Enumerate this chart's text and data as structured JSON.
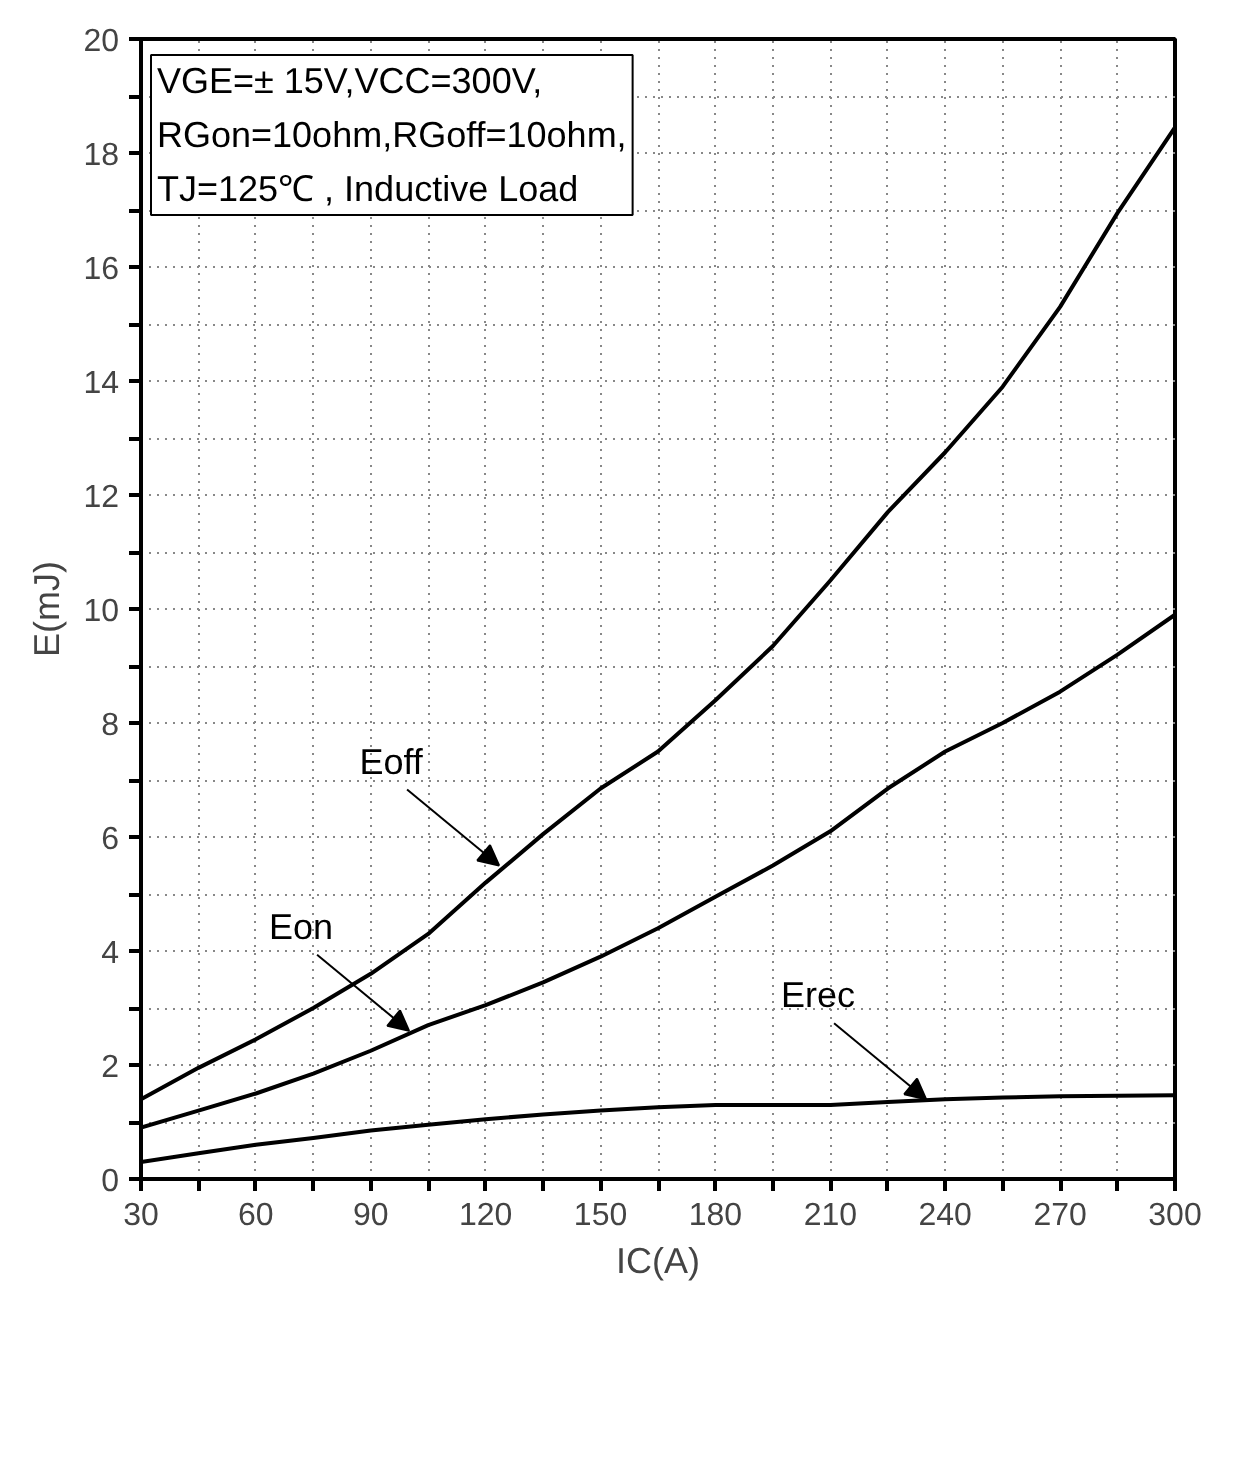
{
  "chart_data": {
    "type": "line",
    "xlabel": "IC(A)",
    "ylabel": "E(mJ)",
    "x": [
      30,
      45,
      60,
      75,
      90,
      105,
      120,
      135,
      150,
      165,
      180,
      195,
      210,
      225,
      240,
      255,
      270,
      285,
      300
    ],
    "series": [
      {
        "color": "#000000",
        "values": [
          1.4,
          1.95,
          2.45,
          3.0,
          3.6,
          4.3,
          5.2,
          6.05,
          6.85,
          7.5,
          8.4,
          9.35,
          10.5,
          11.7,
          12.75,
          13.9,
          15.3,
          16.95,
          18.45
        ]
      },
      {
        "color": "#000000",
        "values": [
          0.9,
          1.2,
          1.5,
          1.85,
          2.25,
          2.7,
          3.05,
          3.45,
          3.9,
          4.4,
          4.95,
          5.5,
          6.1,
          6.85,
          7.5,
          8.0,
          8.55,
          9.2,
          9.9
        ]
      },
      {
        "color": "#000000",
        "values": [
          0.3,
          0.45,
          0.6,
          0.72,
          0.85,
          0.95,
          1.05,
          1.13,
          1.2,
          1.26,
          1.3,
          1.3,
          1.3,
          1.35,
          1.4,
          1.43,
          1.45,
          1.46,
          1.47
        ]
      }
    ],
    "annotations": [
      "VGE=± 15V,VCC=300V,",
      "RGon=10ohm,RGoff=10ohm,",
      "TJ=125℃ , Inductive Load",
      {
        "text": "Eoff",
        "x": 123.5,
        "y": 5.5
      },
      {
        "text": "Eon",
        "x": 100,
        "y": 2.6
      },
      {
        "text": "Erec",
        "x": 235,
        "y": 1.4
      }
    ],
    "xlim": [
      30,
      300
    ],
    "ylim": [
      0,
      20
    ],
    "xticks": [
      30,
      {
        "value": 45,
        "label": null
      },
      60,
      {
        "value": 75,
        "label": null
      },
      90,
      {
        "value": 105,
        "label": null
      },
      120,
      {
        "value": 135,
        "label": null
      },
      150,
      {
        "value": 165,
        "label": null
      },
      180,
      {
        "value": 195,
        "label": null
      },
      210,
      {
        "value": 225,
        "label": null
      },
      240,
      {
        "value": 255,
        "label": null
      },
      270,
      {
        "value": 285,
        "label": null
      },
      300
    ],
    "yticks": [
      0,
      {
        "value": 1,
        "label": null
      },
      2,
      {
        "value": 3,
        "label": null
      },
      4,
      {
        "value": 5,
        "label": null
      },
      6,
      {
        "value": 7,
        "label": null
      },
      8,
      {
        "value": 9,
        "label": null
      },
      10,
      {
        "value": 11,
        "label": null
      },
      12,
      {
        "value": 13,
        "label": null
      },
      14,
      {
        "value": 15,
        "label": null
      },
      16,
      {
        "value": 17,
        "label": null
      },
      18,
      {
        "value": 19,
        "label": null
      },
      20
    ],
    "grid": true
  }
}
